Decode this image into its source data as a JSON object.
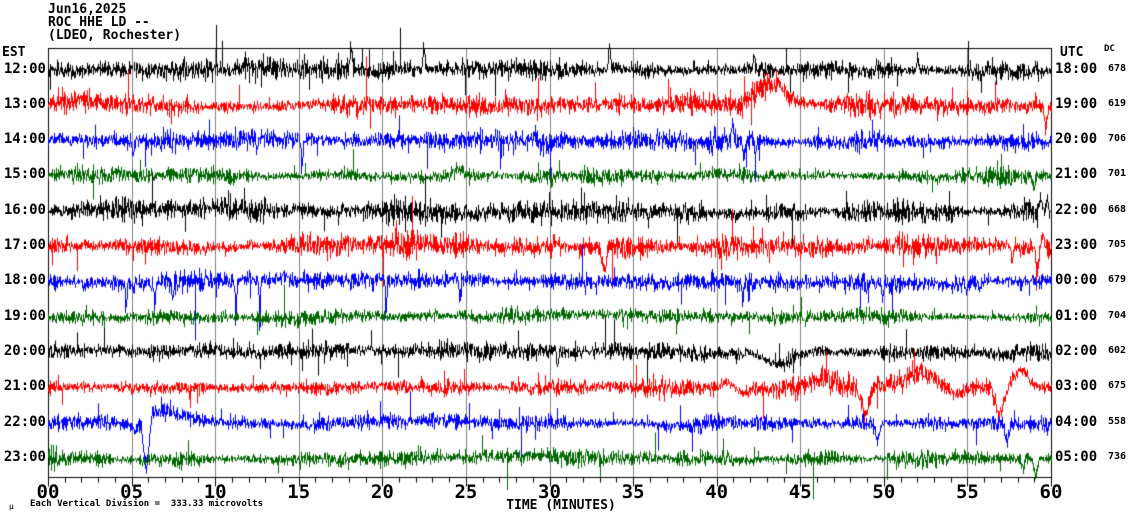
{
  "header": {
    "date": "Jun16,2025",
    "station": "ROC HHE LD --",
    "location": "(LDEO, Rochester)"
  },
  "axes": {
    "left_label": "EST",
    "right_label": "UTC",
    "dc_label": "DC",
    "x_title": "TIME (MINUTES)",
    "x_ticks": [
      "00",
      "05",
      "10",
      "15",
      "20",
      "25",
      "30",
      "35",
      "40",
      "45",
      "50",
      "55",
      "60"
    ],
    "x_minor_tick_every_minutes": 1,
    "x_major_tick_every_minutes": 5,
    "x_range_minutes": [
      0,
      60
    ],
    "grid": "vertical-every-5-minutes"
  },
  "footer": {
    "scale_note": "Each Vertical Division =  333.33 microvolts",
    "mu_glyph": "µ"
  },
  "colors": {
    "background": "#ffffff",
    "frame": "#000000",
    "grid": "#808080",
    "text": "#000000",
    "trace_black": "#000000",
    "trace_red": "#ff0000",
    "trace_blue": "#0000ff",
    "trace_green": "#006600"
  },
  "chart_data": {
    "type": "line",
    "subtype": "helicorder-seismogram",
    "title": "ROC HHE LD -- (LDEO, Rochester) Jun16,2025",
    "xlabel": "TIME (MINUTES)",
    "x_range": [
      0,
      60
    ],
    "vertical_division_microvolts": 333.33,
    "rows_are_hours": true,
    "legend_position": "none",
    "rows": [
      {
        "est": "12:00",
        "utc": "18:00",
        "dc": "678",
        "color": "#000000",
        "seed": 101,
        "amp": 5.2,
        "events": [
          {
            "t": "vspike",
            "m": 18.1,
            "w": 0.14,
            "a": 24
          },
          {
            "t": "vspike",
            "m": 22.45,
            "w": 0.12,
            "a": 27
          },
          {
            "t": "vspike",
            "m": 33.55,
            "w": 0.12,
            "a": 29
          },
          {
            "t": "vspike",
            "m": 42.2,
            "w": 0.1,
            "a": 18
          },
          {
            "t": "vspike",
            "m": 52.0,
            "w": 0.1,
            "a": 16
          }
        ]
      },
      {
        "est": "13:00",
        "utc": "19:00",
        "dc": "619",
        "color": "#ff0000",
        "seed": 202,
        "amp": 5.8,
        "events": [
          {
            "t": "bump",
            "m": 1.9,
            "w": 1.1,
            "a": 5
          },
          {
            "t": "bump",
            "m": 42.5,
            "w": 0.3,
            "a": 8
          },
          {
            "t": "bump",
            "m": 43.25,
            "w": 0.55,
            "a": 19
          },
          {
            "t": "decay",
            "m": 43.5,
            "w": 1.4,
            "a": 10
          },
          {
            "t": "burst",
            "m": 43.5,
            "w": 1.2,
            "k": 1.4
          },
          {
            "t": "vspike",
            "m": 59.65,
            "w": 0.18,
            "a": -24
          }
        ]
      },
      {
        "est": "14:00",
        "utc": "20:00",
        "dc": "706",
        "color": "#0000ff",
        "seed": 303,
        "amp": 5.2,
        "events": [
          {
            "t": "vspike",
            "m": 5.05,
            "w": 0.1,
            "a": -17
          },
          {
            "t": "vspike",
            "m": 12.45,
            "w": 0.1,
            "a": -15
          },
          {
            "t": "vspike",
            "m": 15.15,
            "w": 0.12,
            "a": -30
          },
          {
            "t": "vspike",
            "m": 40.9,
            "w": 0.14,
            "a": 21
          },
          {
            "t": "vspike",
            "m": 41.6,
            "w": 0.14,
            "a": -25
          },
          {
            "t": "vspike",
            "m": 42.3,
            "w": 0.1,
            "a": -18
          },
          {
            "t": "burst",
            "m": 41.5,
            "w": 1.0,
            "k": 2.0
          },
          {
            "t": "burst",
            "m": 58.9,
            "w": 1.2,
            "k": 1.7
          }
        ]
      },
      {
        "est": "15:00",
        "utc": "21:00",
        "dc": "701",
        "color": "#006600",
        "seed": 404,
        "amp": 4.4,
        "events": [
          {
            "t": "bump",
            "m": 24.45,
            "w": 0.3,
            "a": 7
          },
          {
            "t": "burst",
            "m": 56.0,
            "w": 2.0,
            "k": 1.7
          },
          {
            "t": "vspike",
            "m": 58.95,
            "w": 0.2,
            "a": -12
          }
        ]
      },
      {
        "est": "16:00",
        "utc": "22:00",
        "dc": "668",
        "color": "#000000",
        "seed": 505,
        "amp": 5.4,
        "events": [
          {
            "t": "vspike",
            "m": 21.35,
            "w": 0.1,
            "a": -11
          },
          {
            "t": "vspike",
            "m": 35.9,
            "w": 0.12,
            "a": -14
          },
          {
            "t": "vspike",
            "m": 59.35,
            "w": 0.14,
            "a": 19
          },
          {
            "t": "vspike",
            "m": 59.75,
            "w": 0.1,
            "a": 15
          }
        ]
      },
      {
        "est": "17:00",
        "utc": "23:00",
        "dc": "705",
        "color": "#ff0000",
        "seed": 606,
        "amp": 5.8,
        "events": [
          {
            "t": "burst",
            "m": 22.0,
            "w": 1.4,
            "k": 1.4
          },
          {
            "t": "vspike",
            "m": 33.25,
            "w": 0.3,
            "a": -21
          },
          {
            "t": "burst",
            "m": 45.8,
            "w": 2.2,
            "k": 1.3
          },
          {
            "t": "vspike",
            "m": 57.65,
            "w": 0.15,
            "a": -19
          },
          {
            "t": "vspike",
            "m": 59.15,
            "w": 0.2,
            "a": -23
          },
          {
            "t": "vspike",
            "m": 59.5,
            "w": 0.15,
            "a": 14
          }
        ]
      },
      {
        "est": "18:00",
        "utc": "00:00",
        "dc": "679",
        "color": "#0000ff",
        "seed": 707,
        "amp": 4.8,
        "events": [
          {
            "t": "burst",
            "m": 5.8,
            "w": 1.7,
            "k": 2.3
          },
          {
            "t": "vspike",
            "m": 4.65,
            "w": 0.1,
            "a": -24
          },
          {
            "t": "vspike",
            "m": 6.35,
            "w": 0.1,
            "a": -27
          },
          {
            "t": "vspike",
            "m": 7.45,
            "w": 0.1,
            "a": -21
          },
          {
            "t": "vspike",
            "m": 11.2,
            "w": 0.08,
            "a": -46
          },
          {
            "t": "vspike",
            "m": 12.62,
            "w": 0.08,
            "a": -50
          },
          {
            "t": "vspike",
            "m": 20.18,
            "w": 0.08,
            "a": -44
          },
          {
            "t": "vspike",
            "m": 24.6,
            "w": 0.1,
            "a": -23
          },
          {
            "t": "vspike",
            "m": 41.5,
            "w": 0.1,
            "a": -25
          },
          {
            "t": "vspike",
            "m": 49.9,
            "w": 0.1,
            "a": -17
          },
          {
            "t": "vspike",
            "m": 55.7,
            "w": 0.1,
            "a": -13
          }
        ]
      },
      {
        "est": "19:00",
        "utc": "01:00",
        "dc": "704",
        "color": "#006600",
        "seed": 808,
        "amp": 4.1,
        "events": [
          {
            "t": "bump",
            "m": 32.0,
            "w": 6.0,
            "a": 1.5
          }
        ]
      },
      {
        "est": "20:00",
        "utc": "02:00",
        "dc": "602",
        "color": "#000000",
        "seed": 909,
        "amp": 5.0,
        "events": [
          {
            "t": "vspike",
            "m": 30.45,
            "w": 0.1,
            "a": -10
          },
          {
            "t": "bump",
            "m": 43.7,
            "w": 0.7,
            "a": -13
          },
          {
            "t": "vspike",
            "m": 57.9,
            "w": 0.1,
            "a": 10
          }
        ]
      },
      {
        "est": "21:00",
        "utc": "03:00",
        "dc": "675",
        "color": "#ff0000",
        "seed": 1010,
        "amp": 5.3,
        "events": [
          {
            "t": "bump",
            "m": 40.6,
            "w": 0.4,
            "a": 7
          },
          {
            "t": "bump",
            "m": 41.5,
            "w": 0.35,
            "a": -6
          },
          {
            "t": "bump",
            "m": 46.4,
            "w": 0.7,
            "a": 9
          },
          {
            "t": "vspike",
            "m": 48.85,
            "w": 0.5,
            "a": -27
          },
          {
            "t": "bump",
            "m": 51.9,
            "w": 1.0,
            "a": 15
          },
          {
            "t": "bump",
            "m": 54.2,
            "w": 0.5,
            "a": -7
          },
          {
            "t": "vspike",
            "m": 56.9,
            "w": 0.55,
            "a": -29
          },
          {
            "t": "bump",
            "m": 58.15,
            "w": 0.4,
            "a": 17
          },
          {
            "t": "burst",
            "m": 52.0,
            "w": 4.0,
            "k": 1.25
          }
        ]
      },
      {
        "est": "22:00",
        "utc": "04:00",
        "dc": "558",
        "color": "#0000ff",
        "seed": 1111,
        "amp": 4.0,
        "events": [
          {
            "t": "bump",
            "m": 5.2,
            "w": 0.22,
            "a": -9
          },
          {
            "t": "vspike",
            "m": 5.85,
            "w": 0.35,
            "a": -53
          },
          {
            "t": "bump",
            "m": 6.95,
            "w": 0.8,
            "a": 13
          },
          {
            "t": "burst",
            "m": 7.0,
            "w": 1.2,
            "k": 2.4
          },
          {
            "t": "decay",
            "m": 8.0,
            "w": 2.0,
            "a": 4
          },
          {
            "t": "vspike",
            "m": 49.6,
            "w": 0.25,
            "a": -19
          },
          {
            "t": "vspike",
            "m": 57.35,
            "w": 0.22,
            "a": -21
          }
        ]
      },
      {
        "est": "23:00",
        "utc": "05:00",
        "dc": "736",
        "color": "#006600",
        "seed": 1212,
        "amp": 4.4,
        "events": [
          {
            "t": "burst",
            "m": 0.5,
            "w": 0.7,
            "k": 1.6
          },
          {
            "t": "vspike",
            "m": 58.3,
            "w": 0.15,
            "a": -13
          },
          {
            "t": "vspike",
            "m": 59.05,
            "w": 0.25,
            "a": -16
          },
          {
            "t": "burst",
            "m": 58.6,
            "w": 0.9,
            "k": 1.4
          }
        ]
      }
    ]
  }
}
